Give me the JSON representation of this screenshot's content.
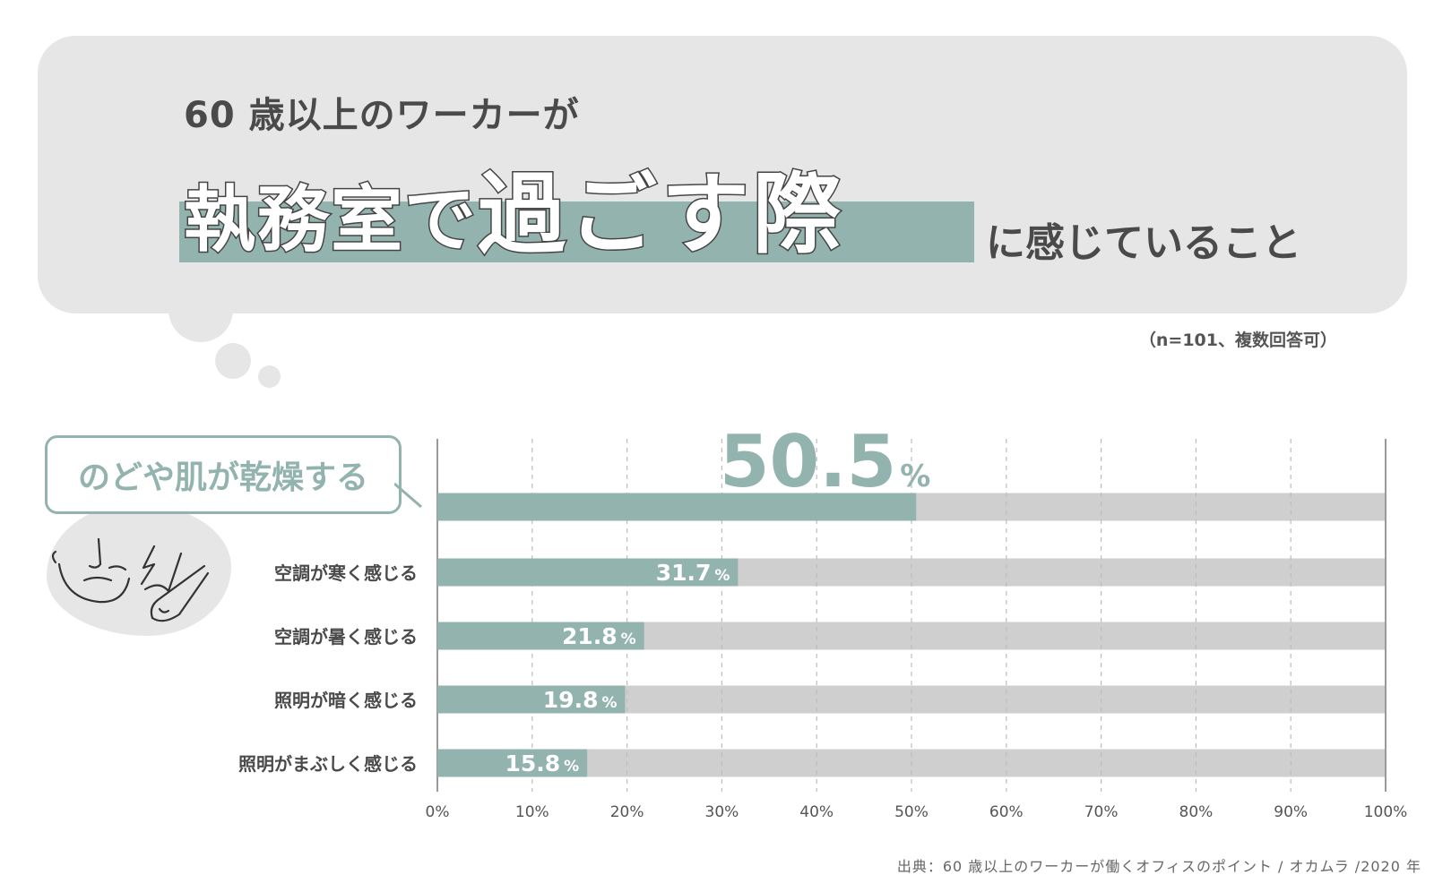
{
  "header": {
    "line1": "60 歳以上のワーカーが",
    "big_part1": "執務室で",
    "big_part2": "過ごす際",
    "tail": "に感じていること",
    "sample_note": "（n=101、複数回答可）"
  },
  "callout": {
    "label": "のどや肌が乾燥する"
  },
  "chart_data": {
    "type": "bar",
    "orientation": "horizontal",
    "stacked_background": true,
    "categories": [
      "のどや肌が乾燥する",
      "空調が寒く感じる",
      "空調が暑く感じる",
      "照明が暗く感じる",
      "照明がまぶしく感じる"
    ],
    "values": [
      50.5,
      31.7,
      21.8,
      19.8,
      15.8
    ],
    "value_labels": [
      "50.5",
      "31.7",
      "21.8",
      "19.8",
      "15.8"
    ],
    "unit": "%",
    "xlim": [
      0,
      100
    ],
    "xticks": [
      "0%",
      "10%",
      "20%",
      "30%",
      "40%",
      "50%",
      "60%",
      "70%",
      "80%",
      "90%",
      "100%"
    ],
    "grid": "vertical-dashed",
    "colors": {
      "bar": "#93b3af",
      "track": "#cfcfcf",
      "grid": "#bdbdbd"
    }
  },
  "source": "出典：60 歳以上のワーカーが働くオフィスのポイント / オカムラ /2020 年",
  "colors": {
    "accent": "#93b3af",
    "panel": "#e6e6e6",
    "text": "#4a4a4a"
  }
}
